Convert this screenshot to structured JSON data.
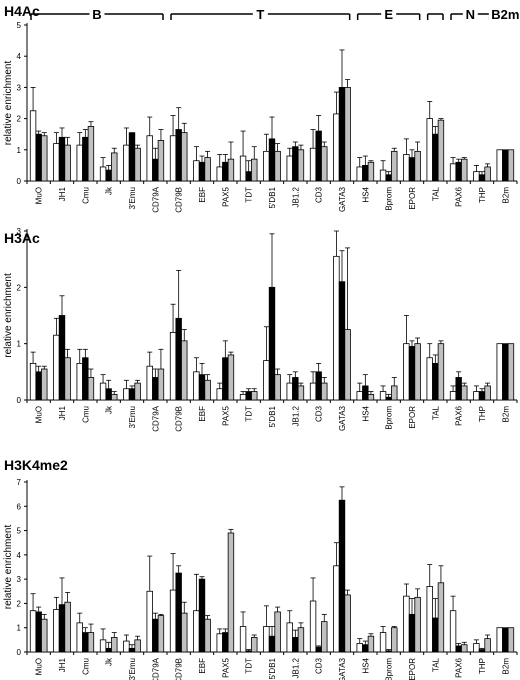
{
  "chart_data": [
    {
      "type": "bar",
      "title": "H4Ac",
      "ylabel": "relative enrichment",
      "ylim": [
        0,
        5
      ],
      "yticks": [
        0,
        1,
        2,
        3,
        4,
        5
      ],
      "categories": [
        "MuO",
        "JH1",
        "Cmu",
        "Jk",
        "3'Emu",
        "CD79A",
        "CD79B",
        "EBF",
        "PAX5",
        "TDT",
        "5'DB1",
        "JB1.2",
        "CD3",
        "GATA3",
        "HS4",
        "Bprom",
        "EPOR",
        "TAL",
        "PAX6",
        "THP",
        "B2m"
      ],
      "series": [
        {
          "color": "#ffffff",
          "values": [
            2.25,
            1.2,
            1.15,
            0.45,
            1.15,
            1.45,
            1.45,
            0.65,
            0.45,
            0.8,
            0.95,
            0.8,
            1.05,
            2.15,
            0.45,
            0.35,
            0.85,
            2.0,
            0.55,
            0.3,
            1.0
          ]
        },
        {
          "color": "#000000",
          "values": [
            1.5,
            1.4,
            1.4,
            0.35,
            1.55,
            0.7,
            1.65,
            0.6,
            0.6,
            0.3,
            1.35,
            1.1,
            1.6,
            3.0,
            0.5,
            0.2,
            0.75,
            1.5,
            0.6,
            0.2,
            1.0
          ]
        },
        {
          "color": "#c0c0c0",
          "values": [
            1.45,
            1.15,
            1.75,
            0.9,
            1.05,
            1.3,
            1.55,
            0.75,
            0.7,
            0.7,
            0.95,
            1.0,
            1.1,
            3.0,
            0.6,
            0.95,
            0.95,
            1.95,
            0.7,
            0.45,
            1.0
          ]
        }
      ],
      "errors": [
        [
          0.75,
          0.35,
          0.4,
          0.3,
          0.55,
          0.6,
          0.65,
          0.45,
          0.4,
          0.8,
          0.55,
          0.25,
          0.6,
          0.7,
          0.3,
          0.3,
          0.5,
          0.55,
          0.2,
          0.2,
          0
        ],
        [
          0.1,
          0.3,
          0.25,
          0.15,
          0.0,
          0.35,
          0.7,
          0.2,
          0.25,
          0.35,
          0.7,
          0.15,
          0.5,
          1.2,
          0.3,
          0.1,
          0.25,
          0.25,
          0.1,
          0.1,
          0
        ],
        [
          0.1,
          0.25,
          0.15,
          0.15,
          0.1,
          0.35,
          0.3,
          0.2,
          0.55,
          0.4,
          0.25,
          0.15,
          0.15,
          0.25,
          0.05,
          0.1,
          0.3,
          0.05,
          0.05,
          0.1,
          0
        ]
      ],
      "groups": [
        {
          "label": "B",
          "from": 0,
          "to": 5
        },
        {
          "label": "T",
          "from": 6,
          "to": 13
        },
        {
          "label": "E",
          "from": 14,
          "to": 16
        },
        {
          "label": "",
          "from": 17,
          "to": 17
        },
        {
          "label": "N",
          "from": 18,
          "to": 19
        },
        {
          "label": "B2m",
          "from": 20,
          "to": 20
        }
      ]
    },
    {
      "type": "bar",
      "title": "H3Ac",
      "ylabel": "relative enrichment",
      "ylim": [
        0,
        3
      ],
      "yticks": [
        0,
        1,
        2,
        3
      ],
      "categories": [
        "MuO",
        "JH1",
        "Cmu",
        "Jk",
        "3'Emu",
        "CD79A",
        "CD79B",
        "EBF",
        "PAX5",
        "TDT",
        "5'DB1",
        "JB1.2",
        "CD3",
        "GATA3",
        "HS4",
        "Bprom",
        "EPOR",
        "TAL",
        "PAX6",
        "THP",
        "B2m"
      ],
      "series": [
        {
          "color": "#ffffff",
          "values": [
            0.65,
            1.15,
            0.65,
            0.3,
            0.2,
            0.6,
            1.2,
            0.5,
            0.2,
            0.1,
            0.7,
            0.3,
            0.3,
            2.55,
            0.15,
            0.15,
            1.0,
            0.75,
            0.15,
            0.15,
            1.0
          ]
        },
        {
          "color": "#000000",
          "values": [
            0.5,
            1.5,
            0.75,
            0.2,
            0.2,
            0.4,
            1.45,
            0.45,
            0.75,
            0.15,
            2.0,
            0.4,
            0.5,
            2.1,
            0.25,
            0.05,
            0.95,
            0.65,
            0.4,
            0.15,
            1.0
          ]
        },
        {
          "color": "#c0c0c0",
          "values": [
            0.55,
            0.75,
            0.4,
            0.1,
            0.3,
            0.55,
            1.05,
            0.35,
            0.8,
            0.15,
            0.45,
            0.25,
            0.3,
            1.25,
            0.1,
            0.25,
            1.0,
            1.0,
            0.25,
            0.25,
            1.0
          ]
        }
      ],
      "errors": [
        [
          0.2,
          0.3,
          0.25,
          0.15,
          0.15,
          0.25,
          0.5,
          0.25,
          0.1,
          0.05,
          0.6,
          0.15,
          0.2,
          0.45,
          0.15,
          0.1,
          0.5,
          0.25,
          0.1,
          0.1,
          0
        ],
        [
          0.1,
          0.35,
          0.15,
          0.15,
          0.05,
          0.15,
          0.85,
          0.2,
          0.3,
          0.05,
          0.95,
          0.1,
          0.15,
          0.55,
          0.2,
          0.05,
          0.1,
          0.15,
          0.1,
          0.05,
          0
        ],
        [
          0.05,
          0.15,
          0.15,
          0.05,
          0.05,
          0.35,
          0.2,
          0.1,
          0.05,
          0.05,
          0.1,
          0.05,
          0.1,
          1.45,
          0.05,
          0.15,
          0.1,
          0.05,
          0.05,
          0.05,
          0
        ]
      ]
    },
    {
      "type": "bar",
      "title": "H3K4me2",
      "ylabel": "relative enrichment",
      "ylim": [
        0,
        7
      ],
      "yticks": [
        0,
        1,
        2,
        3,
        4,
        5,
        6,
        7
      ],
      "categories": [
        "MuO",
        "JH1",
        "Cmu",
        "Jk",
        "3'Emu",
        "CD79A",
        "CD79B",
        "EBF",
        "PAX5",
        "TDT",
        "5'DB1",
        "JB1.2",
        "CD3",
        "GATA3",
        "HS4",
        "Bprom",
        "EPOR",
        "TAL",
        "PAX6",
        "THP",
        "B2m"
      ],
      "series": [
        {
          "color": "#ffffff",
          "values": [
            1.7,
            1.75,
            1.2,
            0.5,
            0.45,
            2.5,
            2.55,
            1.7,
            0.75,
            1.05,
            1.05,
            1.2,
            2.1,
            3.55,
            0.35,
            0.8,
            2.3,
            2.7,
            1.7,
            0.35,
            1.0
          ]
        },
        {
          "color": "#000000",
          "values": [
            1.65,
            1.95,
            0.8,
            0.15,
            0.15,
            1.35,
            3.25,
            3.0,
            0.8,
            0.05,
            0.65,
            0.6,
            0.2,
            6.25,
            0.3,
            0.05,
            1.55,
            1.4,
            0.25,
            0.1,
            1.0
          ]
        },
        {
          "color": "#c0c0c0",
          "values": [
            1.35,
            2.05,
            0.8,
            0.6,
            0.5,
            1.5,
            1.6,
            1.35,
            4.9,
            0.6,
            1.65,
            1.0,
            1.25,
            2.35,
            0.65,
            1.0,
            2.25,
            2.85,
            0.3,
            0.55,
            1.0
          ]
        }
      ],
      "errors": [
        [
          0.7,
          0.5,
          0.4,
          0.45,
          0.25,
          1.45,
          1.5,
          1.5,
          0.2,
          0.6,
          0.85,
          0.5,
          0.95,
          0.95,
          0.2,
          0.25,
          0.5,
          0.9,
          0.6,
          0.15,
          0
        ],
        [
          0.2,
          1.1,
          0.2,
          0.25,
          0.15,
          0.25,
          0.3,
          0.1,
          0.15,
          0.05,
          0.4,
          0.3,
          0.05,
          0.55,
          0.15,
          0.05,
          0.65,
          0.8,
          0.1,
          0.05,
          0
        ],
        [
          0.2,
          0.4,
          0.35,
          0.2,
          0.15,
          0.05,
          0.45,
          0.15,
          0.15,
          0.1,
          0.2,
          0.2,
          0.3,
          0.2,
          0.1,
          0.05,
          0.35,
          0.7,
          0.1,
          0.15,
          0
        ]
      ]
    }
  ]
}
